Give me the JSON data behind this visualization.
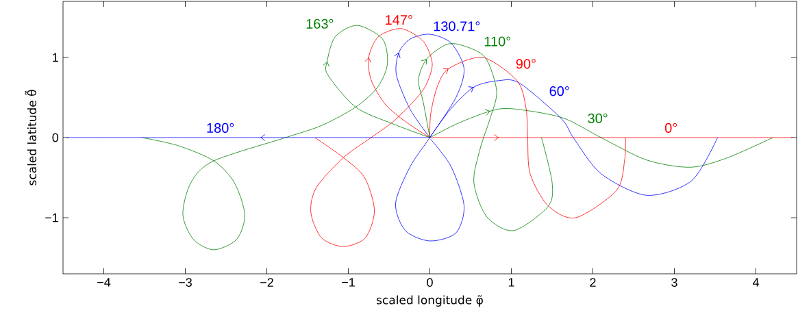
{
  "chart_data": {
    "type": "line",
    "xlabel": "scaled longitude φ̃",
    "ylabel": "scaled latitude θ̃",
    "xlim": [
      -4.5,
      4.5
    ],
    "ylim": [
      -1.7,
      1.7
    ],
    "xticks": [
      {
        "value": -4,
        "label": "−4"
      },
      {
        "value": -3,
        "label": "−3"
      },
      {
        "value": -2,
        "label": "−2"
      },
      {
        "value": -1,
        "label": "−1"
      },
      0,
      1,
      2,
      3,
      4
    ],
    "yticks": [
      {
        "value": -1,
        "label": "−1"
      },
      0,
      1
    ],
    "series": [
      {
        "name": "0°",
        "color": "#ff0000",
        "x": [
          0,
          4.45
        ],
        "values": [
          0,
          0
        ]
      },
      {
        "name": "30°",
        "color": "#008000",
        "x": [
          0,
          0.35,
          0.74,
          1.01,
          1.62,
          2.1,
          2.66,
          3.19,
          3.63,
          4.21
        ],
        "values": [
          0,
          0.18,
          0.33,
          0.36,
          0.25,
          0,
          -0.28,
          -0.37,
          -0.26,
          0
        ]
      },
      {
        "name": "60°",
        "color": "#0000ff",
        "x": [
          0,
          0.25,
          0.54,
          0.84,
          1.1,
          1.61,
          1.76,
          2.1,
          2.66,
          3.21,
          3.53
        ],
        "values": [
          0,
          0.35,
          0.63,
          0.71,
          0.68,
          0.24,
          0,
          -0.45,
          -0.72,
          -0.54,
          0
        ]
      },
      {
        "name": "90°",
        "color": "#ff0000",
        "x": [
          0,
          0.01,
          0.09,
          0.23,
          0.65,
          1.07,
          1.18,
          1.2,
          1.23,
          1.45,
          1.79,
          2.29,
          2.39,
          2.4
        ],
        "values": [
          0,
          0.29,
          0.63,
          0.86,
          1.0,
          0.71,
          0.37,
          0,
          -0.45,
          -0.85,
          -1.0,
          -0.66,
          -0.28,
          0
        ]
      },
      {
        "name": "110°",
        "color": "#008000",
        "x": [
          0,
          -0.08,
          -0.14,
          -0.04,
          0.2,
          0.4,
          0.68,
          0.82,
          0.74,
          0.62,
          0.54,
          0.7,
          1.03,
          1.45,
          1.5,
          1.37
        ],
        "values": [
          0,
          0.44,
          0.72,
          0.98,
          1.16,
          1.15,
          1.0,
          0.58,
          0.24,
          -0.13,
          -0.56,
          -0.99,
          -1.16,
          -0.86,
          -0.56,
          0
        ]
      },
      {
        "name": "130.71°",
        "color": "#0000ff",
        "x": [
          0,
          -0.24,
          -0.41,
          -0.38,
          -0.24,
          0,
          0.26,
          0.42,
          0.32,
          0,
          -0.24,
          -0.42,
          -0.3,
          0,
          0.32,
          0.42,
          0.26,
          0.01
        ],
        "values": [
          0,
          0.35,
          0.78,
          1.06,
          1.23,
          1.29,
          1.18,
          0.86,
          0.5,
          0,
          -0.36,
          -0.82,
          -1.16,
          -1.29,
          -1.19,
          -0.85,
          -0.36,
          -0.02
        ]
      },
      {
        "name": "147°",
        "color": "#ff0000",
        "x": [
          0,
          -0.3,
          -0.55,
          -0.72,
          -0.75,
          -0.63,
          -0.35,
          -0.08,
          0.03,
          -0.05,
          -0.2,
          -0.45,
          -0.72,
          -1.06,
          -1.39,
          -1.46,
          -1.33,
          -1.06,
          -0.79,
          -0.68,
          -0.8,
          -1.06,
          -1.41
        ],
        "values": [
          0,
          0.2,
          0.42,
          0.72,
          1.0,
          1.26,
          1.36,
          1.2,
          0.92,
          0.65,
          0.45,
          0.2,
          0,
          -0.25,
          -0.62,
          -0.93,
          -1.25,
          -1.36,
          -1.25,
          -0.91,
          -0.5,
          -0.25,
          0
        ]
      },
      {
        "name": "163°",
        "color": "#008000",
        "x": [
          0,
          -0.45,
          -0.91,
          -1.25,
          -1.26,
          -1.16,
          -0.89,
          -0.58,
          -0.52,
          -0.64,
          -0.91,
          -1.33,
          -1.77,
          -2.65,
          -2.93,
          -3.03,
          -2.9,
          -2.65,
          -2.37,
          -2.27,
          -2.4,
          -2.65,
          -3.09,
          -3.53
        ],
        "values": [
          0,
          0.17,
          0.38,
          0.78,
          0.95,
          1.26,
          1.4,
          1.23,
          0.92,
          0.63,
          0.38,
          0.15,
          0,
          -0.29,
          -0.56,
          -0.96,
          -1.27,
          -1.4,
          -1.27,
          -0.96,
          -0.56,
          -0.29,
          -0.1,
          0
        ]
      },
      {
        "name": "180°",
        "color": "#0000ff",
        "x": [
          0,
          -4.45
        ],
        "values": [
          0,
          0
        ]
      }
    ]
  }
}
